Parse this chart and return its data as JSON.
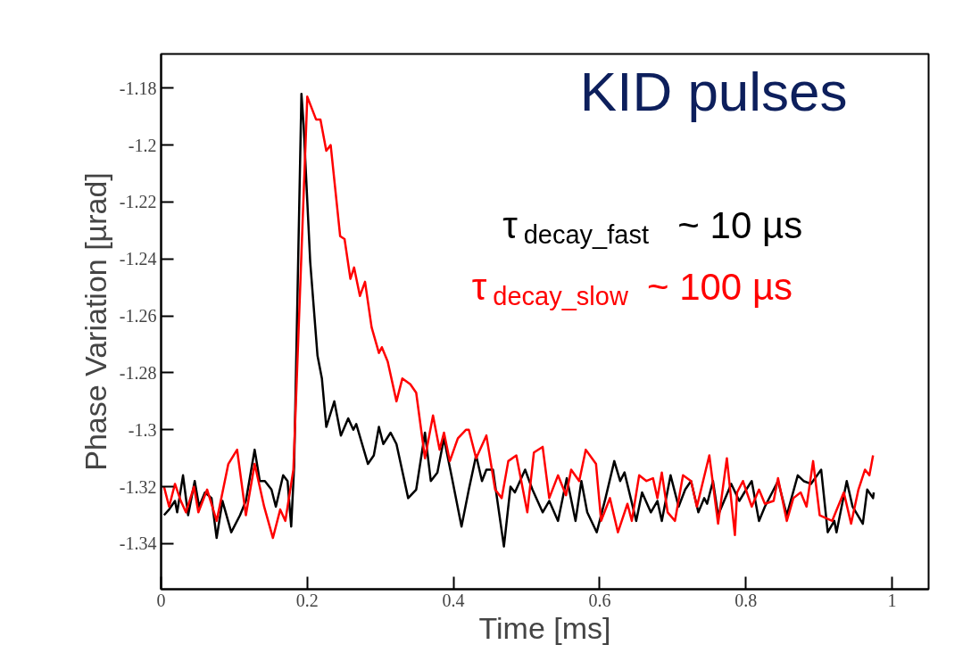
{
  "chart_data": {
    "type": "line",
    "title": "KID pulses",
    "xlabel": "Time [ms]",
    "ylabel": "Phase Variation [µrad]",
    "annotations": [
      "τ$_{decay_fast}$ ~  10 µs",
      "τ$_{decay_slow}$ ~  100 µs"
    ],
    "xlim": [
      0,
      1.05
    ],
    "ylim": [
      -1.356,
      -1.168
    ],
    "xticks": [
      0,
      0.2,
      0.4,
      0.6,
      0.8,
      1
    ],
    "yticks": [
      -1.34,
      -1.32,
      -1.3,
      -1.28,
      -1.26,
      -1.24,
      -1.22,
      -1.2,
      -1.18
    ],
    "grid": false,
    "marker": "none",
    "line_style": "solid",
    "series": [
      {
        "color": "#000000",
        "x": [
          0.004,
          0.011,
          0.019,
          0.022,
          0.03,
          0.037,
          0.046,
          0.052,
          0.06,
          0.069,
          0.076,
          0.084,
          0.096,
          0.108,
          0.116,
          0.128,
          0.135,
          0.142,
          0.151,
          0.157,
          0.167,
          0.173,
          0.178,
          0.182,
          0.192,
          0.195,
          0.204,
          0.214,
          0.22,
          0.226,
          0.237,
          0.246,
          0.256,
          0.263,
          0.267,
          0.283,
          0.291,
          0.298,
          0.304,
          0.314,
          0.322,
          0.338,
          0.349,
          0.361,
          0.369,
          0.378,
          0.387,
          0.398,
          0.411,
          0.421,
          0.431,
          0.439,
          0.445,
          0.454,
          0.469,
          0.478,
          0.484,
          0.498,
          0.508,
          0.522,
          0.531,
          0.543,
          0.555,
          0.567,
          0.575,
          0.583,
          0.596,
          0.608,
          0.62,
          0.628,
          0.634,
          0.65,
          0.658,
          0.67,
          0.679,
          0.685,
          0.697,
          0.708,
          0.717,
          0.725,
          0.735,
          0.743,
          0.747,
          0.755,
          0.762,
          0.78,
          0.791,
          0.798,
          0.808,
          0.818,
          0.826,
          0.844,
          0.856,
          0.871,
          0.879,
          0.889,
          0.903,
          0.912,
          0.921,
          0.924,
          0.938,
          0.946,
          0.96,
          0.966,
          0.974,
          0.975
        ],
        "values": [
          -1.33,
          -1.328,
          -1.325,
          -1.329,
          -1.316,
          -1.33,
          -1.318,
          -1.327,
          -1.322,
          -1.324,
          -1.338,
          -1.325,
          -1.336,
          -1.33,
          -1.325,
          -1.307,
          -1.318,
          -1.318,
          -1.321,
          -1.327,
          -1.316,
          -1.318,
          -1.334,
          -1.313,
          -1.182,
          -1.193,
          -1.241,
          -1.274,
          -1.282,
          -1.299,
          -1.29,
          -1.302,
          -1.296,
          -1.3,
          -1.298,
          -1.312,
          -1.309,
          -1.299,
          -1.305,
          -1.301,
          -1.305,
          -1.324,
          -1.321,
          -1.301,
          -1.318,
          -1.315,
          -1.303,
          -1.317,
          -1.334,
          -1.321,
          -1.309,
          -1.318,
          -1.314,
          -1.314,
          -1.341,
          -1.32,
          -1.322,
          -1.314,
          -1.321,
          -1.329,
          -1.325,
          -1.332,
          -1.317,
          -1.332,
          -1.318,
          -1.329,
          -1.336,
          -1.324,
          -1.311,
          -1.318,
          -1.315,
          -1.332,
          -1.322,
          -1.329,
          -1.325,
          -1.332,
          -1.316,
          -1.327,
          -1.321,
          -1.318,
          -1.329,
          -1.324,
          -1.326,
          -1.318,
          -1.33,
          -1.319,
          -1.325,
          -1.322,
          -1.318,
          -1.332,
          -1.327,
          -1.318,
          -1.33,
          -1.316,
          -1.318,
          -1.319,
          -1.314,
          -1.336,
          -1.332,
          -1.336,
          -1.318,
          -1.327,
          -1.333,
          -1.321,
          -1.324,
          -1.322
        ]
      },
      {
        "color": "#ff0000",
        "x": [
          0.004,
          0.011,
          0.019,
          0.027,
          0.034,
          0.045,
          0.051,
          0.063,
          0.076,
          0.092,
          0.104,
          0.116,
          0.128,
          0.141,
          0.153,
          0.163,
          0.17,
          0.181,
          0.2,
          0.212,
          0.218,
          0.226,
          0.232,
          0.245,
          0.251,
          0.259,
          0.264,
          0.272,
          0.279,
          0.288,
          0.298,
          0.302,
          0.31,
          0.322,
          0.33,
          0.341,
          0.349,
          0.361,
          0.372,
          0.381,
          0.387,
          0.395,
          0.406,
          0.417,
          0.421,
          0.431,
          0.445,
          0.457,
          0.466,
          0.475,
          0.486,
          0.501,
          0.51,
          0.522,
          0.531,
          0.543,
          0.554,
          0.561,
          0.572,
          0.581,
          0.595,
          0.602,
          0.614,
          0.625,
          0.638,
          0.644,
          0.654,
          0.664,
          0.673,
          0.679,
          0.685,
          0.693,
          0.703,
          0.714,
          0.725,
          0.733,
          0.75,
          0.762,
          0.774,
          0.785,
          0.788,
          0.796,
          0.808,
          0.818,
          0.826,
          0.838,
          0.844,
          0.856,
          0.865,
          0.875,
          0.883,
          0.892,
          0.901,
          0.918,
          0.934,
          0.944,
          0.954,
          0.963,
          0.969,
          0.974
        ],
        "values": [
          -1.32,
          -1.327,
          -1.319,
          -1.325,
          -1.329,
          -1.32,
          -1.329,
          -1.321,
          -1.332,
          -1.312,
          -1.307,
          -1.33,
          -1.312,
          -1.327,
          -1.338,
          -1.328,
          -1.332,
          -1.314,
          -1.183,
          -1.191,
          -1.191,
          -1.202,
          -1.2,
          -1.232,
          -1.233,
          -1.247,
          -1.243,
          -1.253,
          -1.248,
          -1.264,
          -1.273,
          -1.271,
          -1.276,
          -1.29,
          -1.282,
          -1.284,
          -1.287,
          -1.31,
          -1.295,
          -1.307,
          -1.301,
          -1.311,
          -1.303,
          -1.3,
          -1.3,
          -1.31,
          -1.302,
          -1.321,
          -1.324,
          -1.311,
          -1.309,
          -1.329,
          -1.308,
          -1.306,
          -1.324,
          -1.316,
          -1.323,
          -1.314,
          -1.318,
          -1.307,
          -1.312,
          -1.332,
          -1.324,
          -1.336,
          -1.326,
          -1.332,
          -1.316,
          -1.318,
          -1.317,
          -1.324,
          -1.315,
          -1.329,
          -1.332,
          -1.316,
          -1.318,
          -1.327,
          -1.309,
          -1.333,
          -1.31,
          -1.337,
          -1.322,
          -1.318,
          -1.327,
          -1.321,
          -1.326,
          -1.325,
          -1.317,
          -1.332,
          -1.324,
          -1.322,
          -1.327,
          -1.311,
          -1.33,
          -1.332,
          -1.322,
          -1.333,
          -1.321,
          -1.314,
          -1.316,
          -1.309
        ]
      }
    ]
  }
}
